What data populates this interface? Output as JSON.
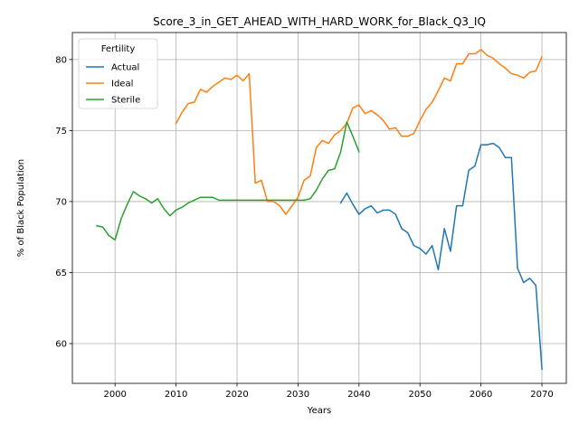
{
  "chart_data": {
    "type": "line",
    "title": "Score_3_in_GET_AHEAD_WITH_HARD_WORK_for_Black_Q3_IQ",
    "xlabel": "Years",
    "ylabel": "% of Black Population",
    "xlim": [
      1993,
      2074
    ],
    "ylim": [
      57.2,
      81.9
    ],
    "xticks": [
      2000,
      2010,
      2020,
      2030,
      2040,
      2050,
      2060,
      2070
    ],
    "yticks": [
      60,
      65,
      70,
      75,
      80
    ],
    "grid": true,
    "legend": {
      "title": "Fertility",
      "placement": "upper-left"
    },
    "series": [
      {
        "name": "Actual",
        "color": "#1f77b4",
        "x": [
          2037,
          2038,
          2039,
          2040,
          2041,
          2042,
          2043,
          2044,
          2045,
          2046,
          2047,
          2048,
          2049,
          2050,
          2051,
          2052,
          2053,
          2054,
          2055,
          2056,
          2057,
          2058,
          2059,
          2060,
          2061,
          2062,
          2063,
          2064,
          2065,
          2066,
          2067,
          2068,
          2069,
          2070
        ],
        "y": [
          69.9,
          70.6,
          69.8,
          69.1,
          69.5,
          69.7,
          69.2,
          69.4,
          69.4,
          69.1,
          68.1,
          67.8,
          66.9,
          66.7,
          66.3,
          66.9,
          65.2,
          68.1,
          66.5,
          69.7,
          69.7,
          72.2,
          72.5,
          74.0,
          74.0,
          74.1,
          73.8,
          73.1,
          73.1,
          65.3,
          64.3,
          64.6,
          64.1,
          58.2
        ]
      },
      {
        "name": "Ideal",
        "color": "#ff7f0e",
        "x": [
          2010,
          2011,
          2012,
          2013,
          2014,
          2015,
          2016,
          2017,
          2018,
          2019,
          2020,
          2021,
          2022,
          2023,
          2024,
          2025,
          2026,
          2027,
          2028,
          2029,
          2030,
          2031,
          2032,
          2033,
          2034,
          2035,
          2036,
          2037,
          2038,
          2039,
          2040,
          2041,
          2042,
          2043,
          2044,
          2045,
          2046,
          2047,
          2048,
          2049,
          2050,
          2051,
          2052,
          2053,
          2054,
          2055,
          2056,
          2057,
          2058,
          2059,
          2060,
          2061,
          2062,
          2063,
          2064,
          2065,
          2066,
          2067,
          2068,
          2069,
          2070
        ],
        "y": [
          75.5,
          76.3,
          76.9,
          77.0,
          77.9,
          77.7,
          78.1,
          78.4,
          78.7,
          78.6,
          78.9,
          78.5,
          79.0,
          71.3,
          71.5,
          70.0,
          70.0,
          69.7,
          69.1,
          69.7,
          70.3,
          71.5,
          71.8,
          73.8,
          74.3,
          74.1,
          74.7,
          75.0,
          75.5,
          76.6,
          76.8,
          76.2,
          76.4,
          76.1,
          75.7,
          75.1,
          75.2,
          74.6,
          74.6,
          74.8,
          75.7,
          76.5,
          77.0,
          77.8,
          78.7,
          78.5,
          79.7,
          79.7,
          80.4,
          80.4,
          80.7,
          80.3,
          80.1,
          79.7,
          79.4,
          79.0,
          78.9,
          78.7,
          79.1,
          79.2,
          80.2
        ]
      },
      {
        "name": "Sterile",
        "color": "#2ca02c",
        "x": [
          1997,
          1998,
          1999,
          2000,
          2001,
          2002,
          2003,
          2004,
          2005,
          2006,
          2007,
          2008,
          2009,
          2010,
          2011,
          2012,
          2013,
          2014,
          2015,
          2016,
          2017,
          2018,
          2019,
          2020,
          2021,
          2022,
          2023,
          2024,
          2025,
          2026,
          2027,
          2028,
          2029,
          2030,
          2031,
          2032,
          2033,
          2034,
          2035,
          2036,
          2037,
          2038,
          2039,
          2040
        ],
        "y": [
          68.3,
          68.2,
          67.6,
          67.3,
          68.8,
          69.8,
          70.7,
          70.4,
          70.2,
          69.9,
          70.2,
          69.5,
          69.0,
          69.4,
          69.6,
          69.9,
          70.1,
          70.3,
          70.3,
          70.3,
          70.1,
          70.1,
          70.1,
          70.1,
          70.1,
          70.1,
          70.1,
          70.1,
          70.1,
          70.1,
          70.1,
          70.1,
          70.1,
          70.1,
          70.1,
          70.2,
          70.8,
          71.6,
          72.2,
          72.3,
          73.5,
          75.6,
          74.6,
          73.5
        ]
      }
    ]
  }
}
